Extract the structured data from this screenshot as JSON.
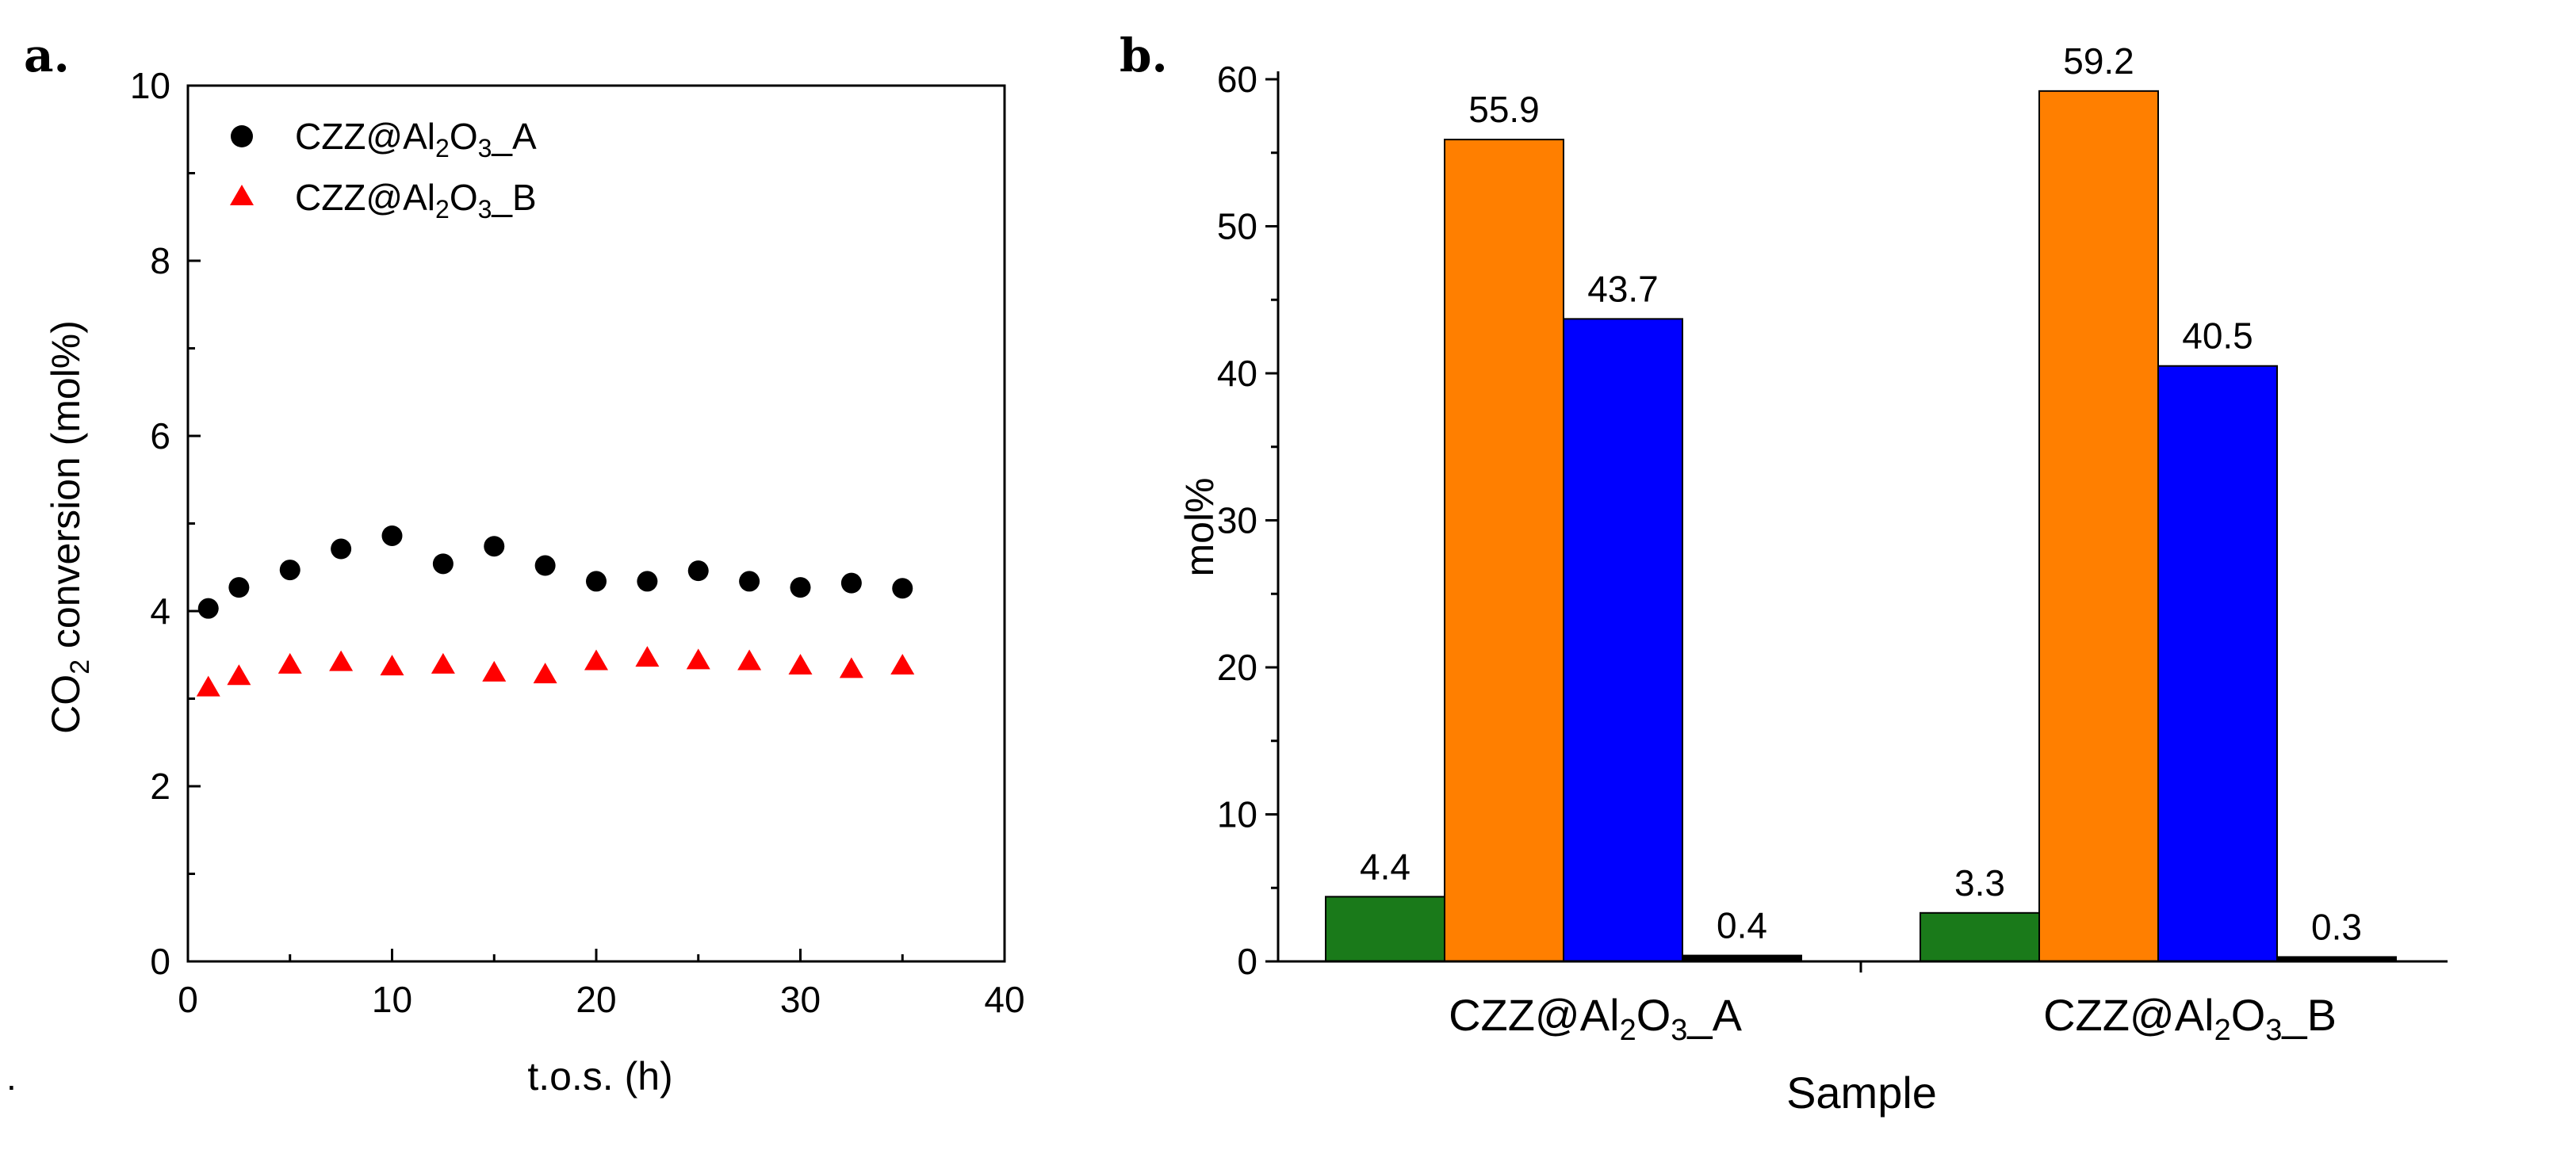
{
  "panel_a_label": "a.",
  "panel_b_label": "b.",
  "corner_dot": ".",
  "chart_data": [
    {
      "id": "a",
      "type": "scatter",
      "title": "",
      "xlabel": "t.o.s. (h)",
      "ylabel_parts": {
        "pre": "CO",
        "sub": "2",
        "post": " conversion (mol%)"
      },
      "xlim": [
        0,
        40
      ],
      "ylim": [
        0,
        10
      ],
      "xticks": [
        "0",
        "10",
        "20",
        "30",
        "40"
      ],
      "yticks": [
        "0",
        "2",
        "4",
        "6",
        "8",
        "10"
      ],
      "legend_position": "top-left",
      "series": [
        {
          "name": "CZZ@Al2O3_A",
          "label_parts": {
            "a": "CZZ@Al",
            "b": "2",
            "c": "O",
            "d": "3",
            "e": "_A"
          },
          "marker": "circle",
          "color": "#000000",
          "x": [
            1,
            2.5,
            5,
            7.5,
            10,
            12.5,
            15,
            17.5,
            20,
            22.5,
            25,
            27.5,
            30,
            32.5,
            35
          ],
          "y": [
            4.03,
            4.27,
            4.47,
            4.71,
            4.86,
            4.54,
            4.74,
            4.52,
            4.34,
            4.34,
            4.46,
            4.34,
            4.27,
            4.32,
            4.26
          ]
        },
        {
          "name": "CZZ@Al2O3_B",
          "label_parts": {
            "a": "CZZ@Al",
            "b": "2",
            "c": "O",
            "d": "3",
            "e": "_B"
          },
          "marker": "triangle",
          "color": "#ff0000",
          "x": [
            1,
            2.5,
            5,
            7.5,
            10,
            12.5,
            15,
            17.5,
            20,
            22.5,
            25,
            27.5,
            30,
            32.5,
            35
          ],
          "y": [
            3.12,
            3.25,
            3.38,
            3.41,
            3.36,
            3.38,
            3.29,
            3.27,
            3.42,
            3.46,
            3.43,
            3.42,
            3.37,
            3.33,
            3.37
          ]
        }
      ]
    },
    {
      "id": "b",
      "type": "bar",
      "title": "",
      "xlabel": "Sample",
      "ylabel": "mol%",
      "ylim": [
        0,
        60
      ],
      "yticks": [
        "0",
        "10",
        "20",
        "30",
        "40",
        "50",
        "60"
      ],
      "categories": [
        {
          "name": "CZZ@Al2O3_A",
          "label_parts": {
            "a": "CZZ@Al",
            "b": "2",
            "c": "O",
            "d": "3",
            "e": "_A"
          }
        },
        {
          "name": "CZZ@Al2O3_B",
          "label_parts": {
            "a": "CZZ@Al",
            "b": "2",
            "c": "O",
            "d": "3",
            "e": "_B"
          }
        }
      ],
      "series": [
        {
          "color": "#1a7a1a",
          "values": [
            4.4,
            3.3
          ],
          "labels": [
            "4.4",
            "3.3"
          ]
        },
        {
          "color": "#ff7f00",
          "values": [
            55.9,
            59.2
          ],
          "labels": [
            "55.9",
            "59.2"
          ]
        },
        {
          "color": "#0000ff",
          "values": [
            43.7,
            40.5
          ],
          "labels": [
            "43.7",
            "40.5"
          ]
        },
        {
          "color": "#000000",
          "values": [
            0.4,
            0.3
          ],
          "labels": [
            "0.4",
            "0.3"
          ]
        }
      ]
    }
  ]
}
